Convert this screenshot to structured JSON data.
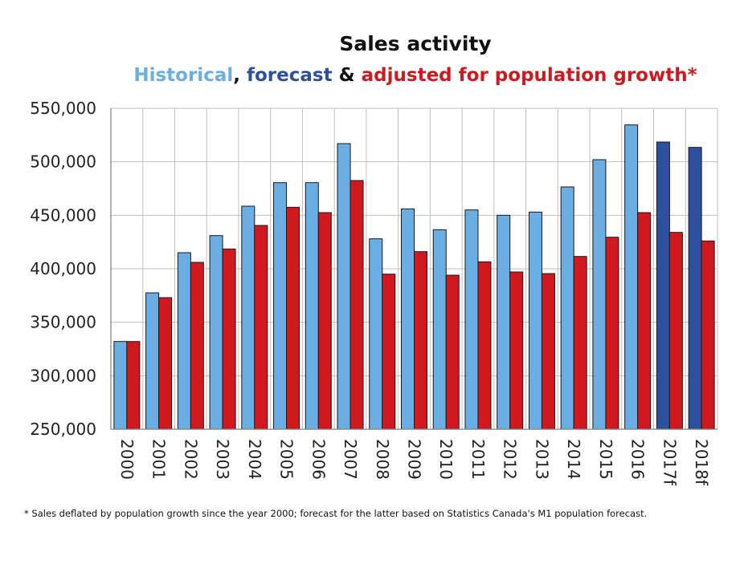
{
  "chart_data": {
    "type": "bar",
    "title": "Sales activity",
    "subtitle": {
      "historical": "Historical",
      "sep1": ", ",
      "forecast": "forecast",
      "sep2": " & ",
      "adjusted": "adjusted for population growth*"
    },
    "categories": [
      "2000",
      "2001",
      "2002",
      "2003",
      "2004",
      "2005",
      "2006",
      "2007",
      "2008",
      "2009",
      "2010",
      "2011",
      "2012",
      "2013",
      "2014",
      "2015",
      "2016",
      "2017f",
      "2018f"
    ],
    "series": [
      {
        "values": [
          332000,
          377500,
          415000,
          431000,
          458500,
          480500,
          480500,
          517000,
          428000,
          456000,
          436500,
          455000,
          450000,
          453000,
          476500,
          502000,
          534500,
          518500,
          513500
        ]
      },
      {
        "values": [
          332000,
          373000,
          406000,
          418500,
          440500,
          457500,
          452500,
          482500,
          395000,
          416000,
          394000,
          406500,
          397000,
          395500,
          411500,
          429500,
          452500,
          434000,
          426000
        ]
      }
    ],
    "forecast_categories": [
      "2017f",
      "2018f"
    ],
    "colors": {
      "historical": "#6aaee3",
      "forecast": "#2c4f9e",
      "adjusted": "#d0191e",
      "title": "#111111",
      "grid": "#bfbfbf"
    },
    "ylim": [
      250000,
      550000
    ],
    "yticks": [
      250000,
      300000,
      350000,
      400000,
      450000,
      500000,
      550000
    ],
    "ytick_labels": [
      "250,000",
      "300,000",
      "350,000",
      "400,000",
      "450,000",
      "500,000",
      "550,000"
    ],
    "grid": true,
    "footnote": "* Sales deflated by population growth since the year 2000; forecast for the latter based on Statistics Canada's M1 population forecast."
  }
}
